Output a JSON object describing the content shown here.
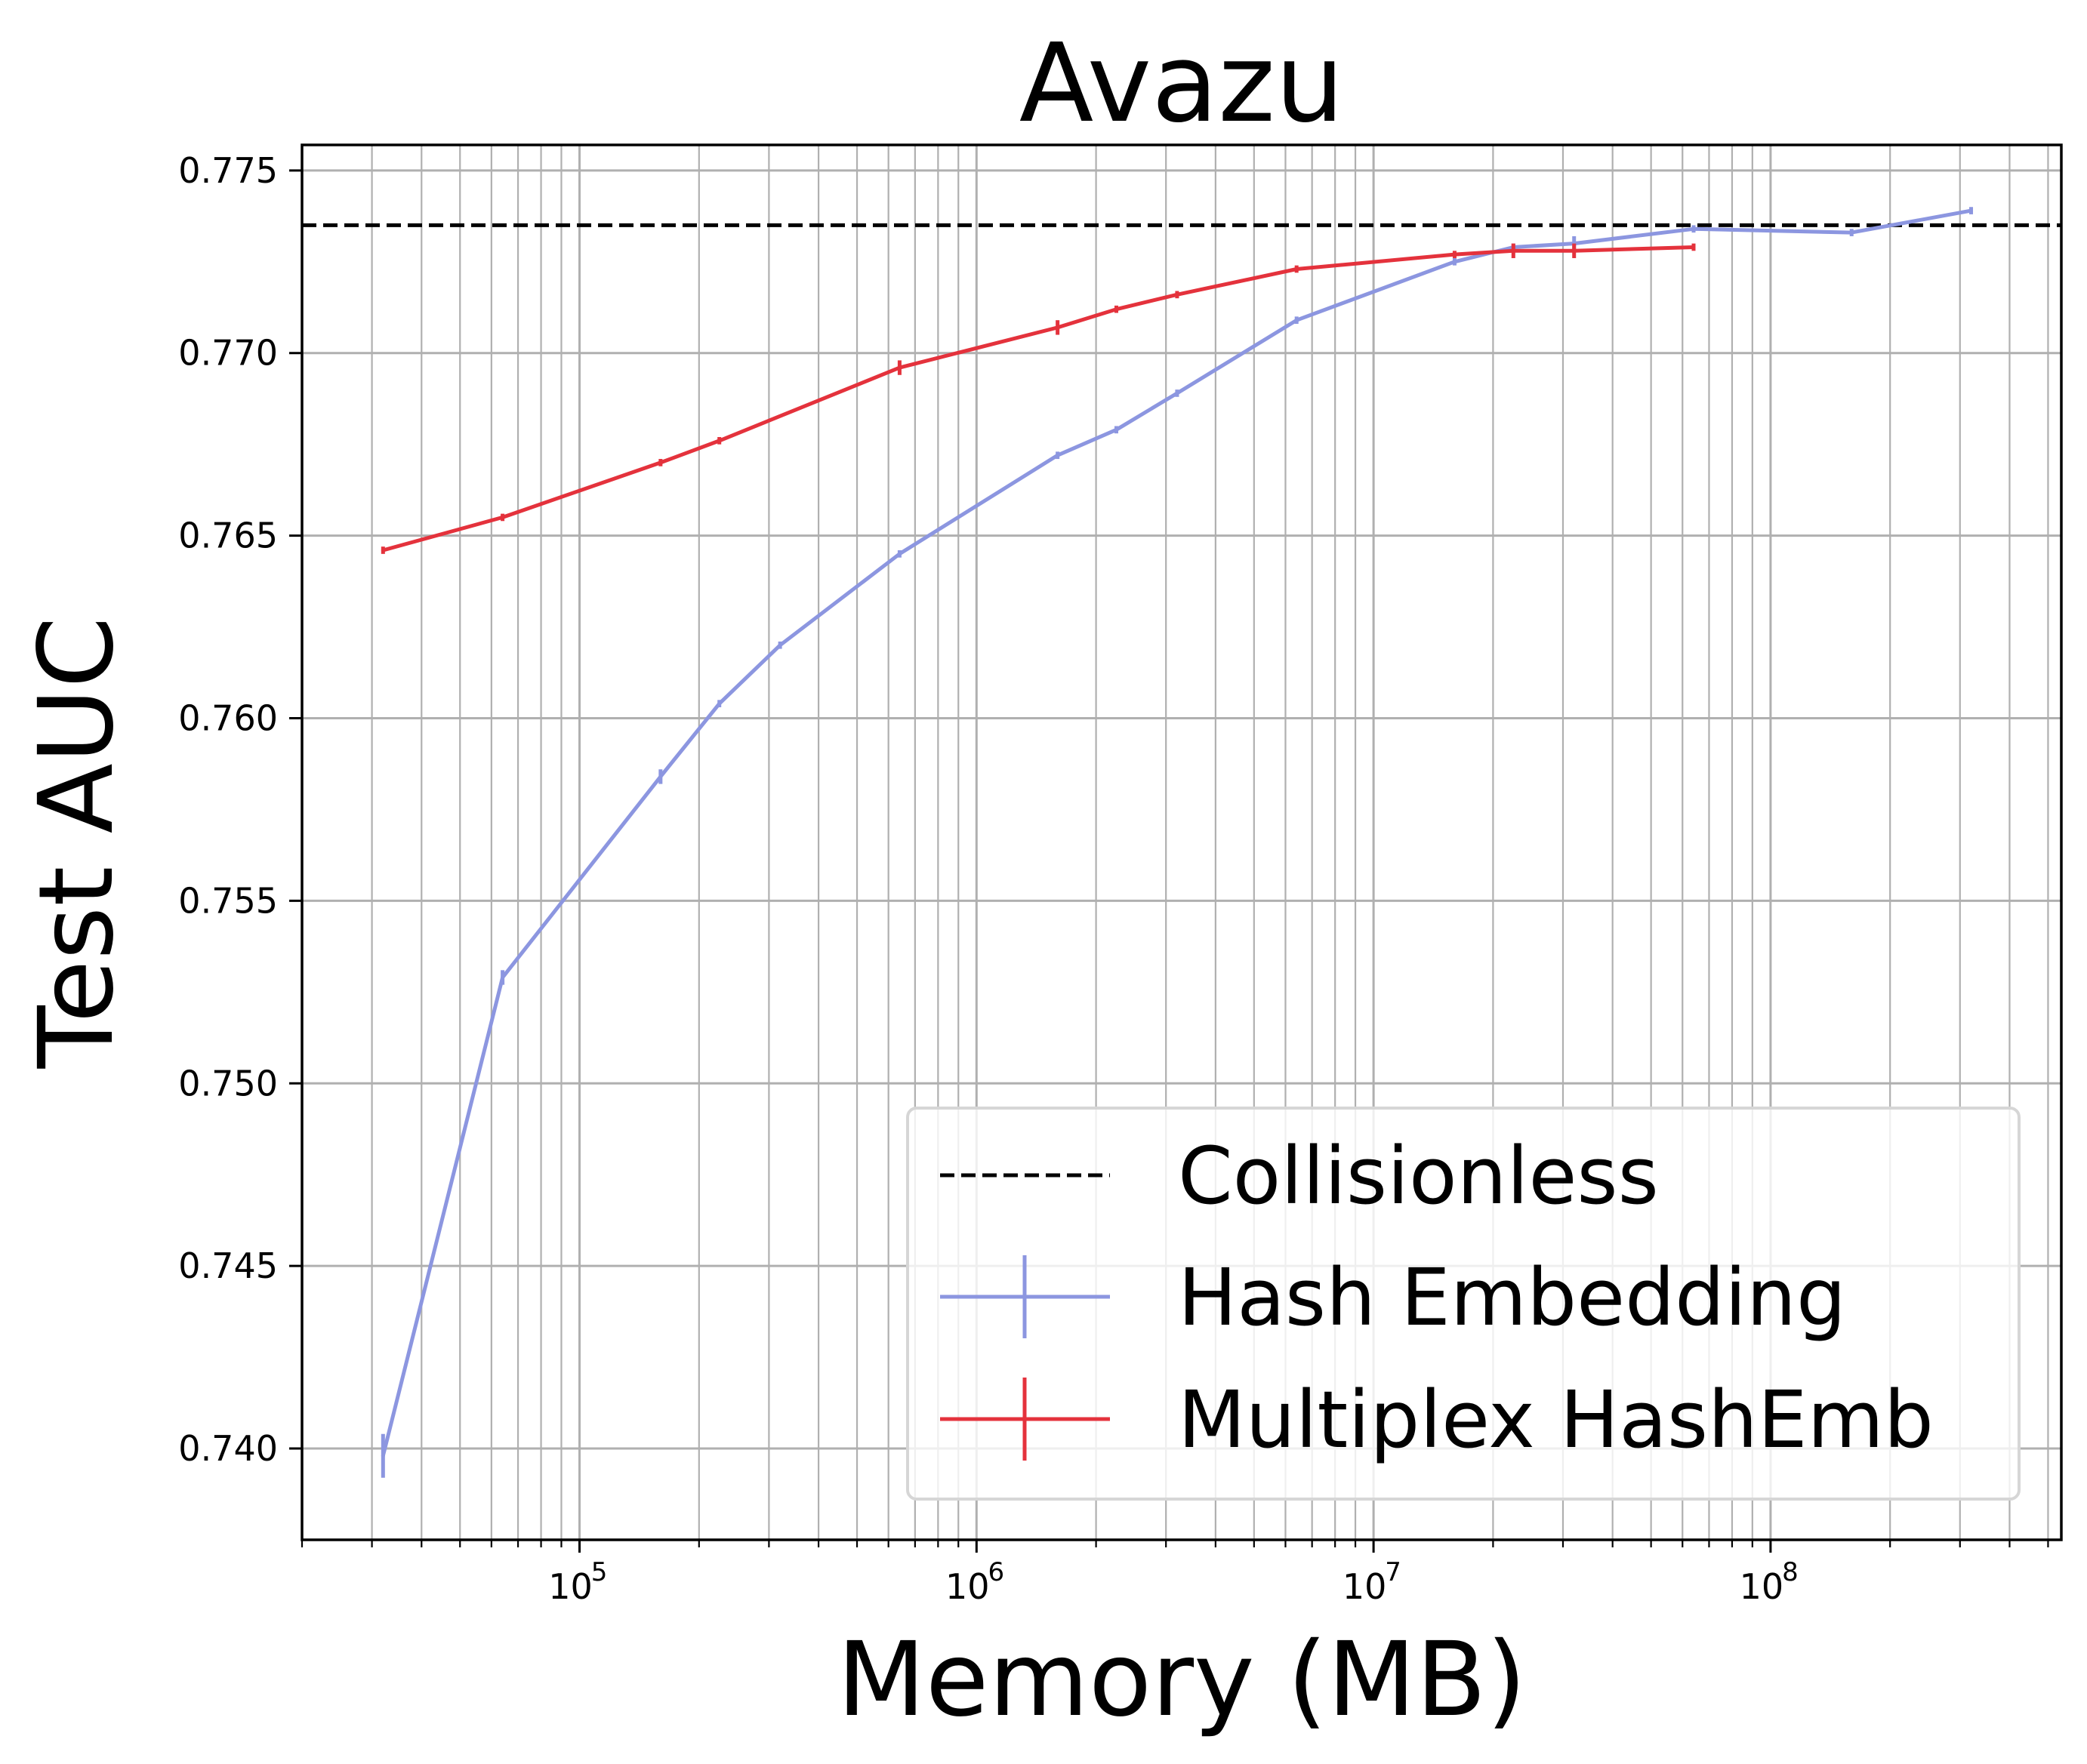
{
  "chart_data": {
    "type": "line",
    "title": "Avazu",
    "xlabel": "Memory (MB)",
    "ylabel": "Test AUC",
    "xscale": "log",
    "xlim": [
      20000,
      540000000
    ],
    "ylim": [
      0.7375,
      0.7757
    ],
    "x_ticks": [
      100000,
      1000000,
      10000000,
      100000000
    ],
    "x_tick_labels": [
      {
        "base": "10",
        "exp": "5"
      },
      {
        "base": "10",
        "exp": "6"
      },
      {
        "base": "10",
        "exp": "7"
      },
      {
        "base": "10",
        "exp": "8"
      }
    ],
    "y_ticks": [
      "0.740",
      "0.745",
      "0.750",
      "0.755",
      "0.760",
      "0.765",
      "0.770",
      "0.775"
    ],
    "grid": "major and minor",
    "legend_position": "lower-right",
    "reference_line": {
      "name": "Collisionless",
      "y": 0.7735,
      "color": "#000000",
      "style": "dashed"
    },
    "series": [
      {
        "name": "Hash Embedding",
        "color": "#8c96e0",
        "x": [
          32000,
          64000,
          160000,
          225000,
          320000,
          640000,
          1600000,
          2250000,
          3200000,
          6400000,
          16000000,
          22500000,
          32000000,
          64000000,
          160000000,
          320000000
        ],
        "y": [
          0.7398,
          0.7529,
          0.7584,
          0.7604,
          0.762,
          0.7645,
          0.7672,
          0.7679,
          0.7689,
          0.7709,
          0.7725,
          0.7729,
          0.773,
          0.7734,
          0.7733,
          0.7739
        ],
        "err": [
          0.0006,
          0.0002,
          0.0002,
          0.0001,
          0.0001,
          0.0001,
          0.0001,
          0.0001,
          0.0001,
          0.0001,
          0.0001,
          0.0001,
          0.0002,
          0.0001,
          0.0001,
          0.0001
        ]
      },
      {
        "name": "Multiplex HashEmb",
        "color": "#e4323c",
        "x": [
          32000,
          64000,
          160000,
          225000,
          640000,
          1600000,
          2250000,
          3200000,
          6400000,
          16000000,
          22500000,
          32000000,
          64000000
        ],
        "y": [
          0.7646,
          0.7655,
          0.767,
          0.7676,
          0.7696,
          0.7707,
          0.7712,
          0.7716,
          0.7723,
          0.7727,
          0.7728,
          0.7728,
          0.7729
        ],
        "err": [
          0.0001,
          0.0001,
          0.0001,
          0.0001,
          0.0002,
          0.0002,
          0.0001,
          0.0001,
          0.0001,
          0.0001,
          0.0002,
          0.0002,
          0.0001
        ]
      }
    ]
  }
}
